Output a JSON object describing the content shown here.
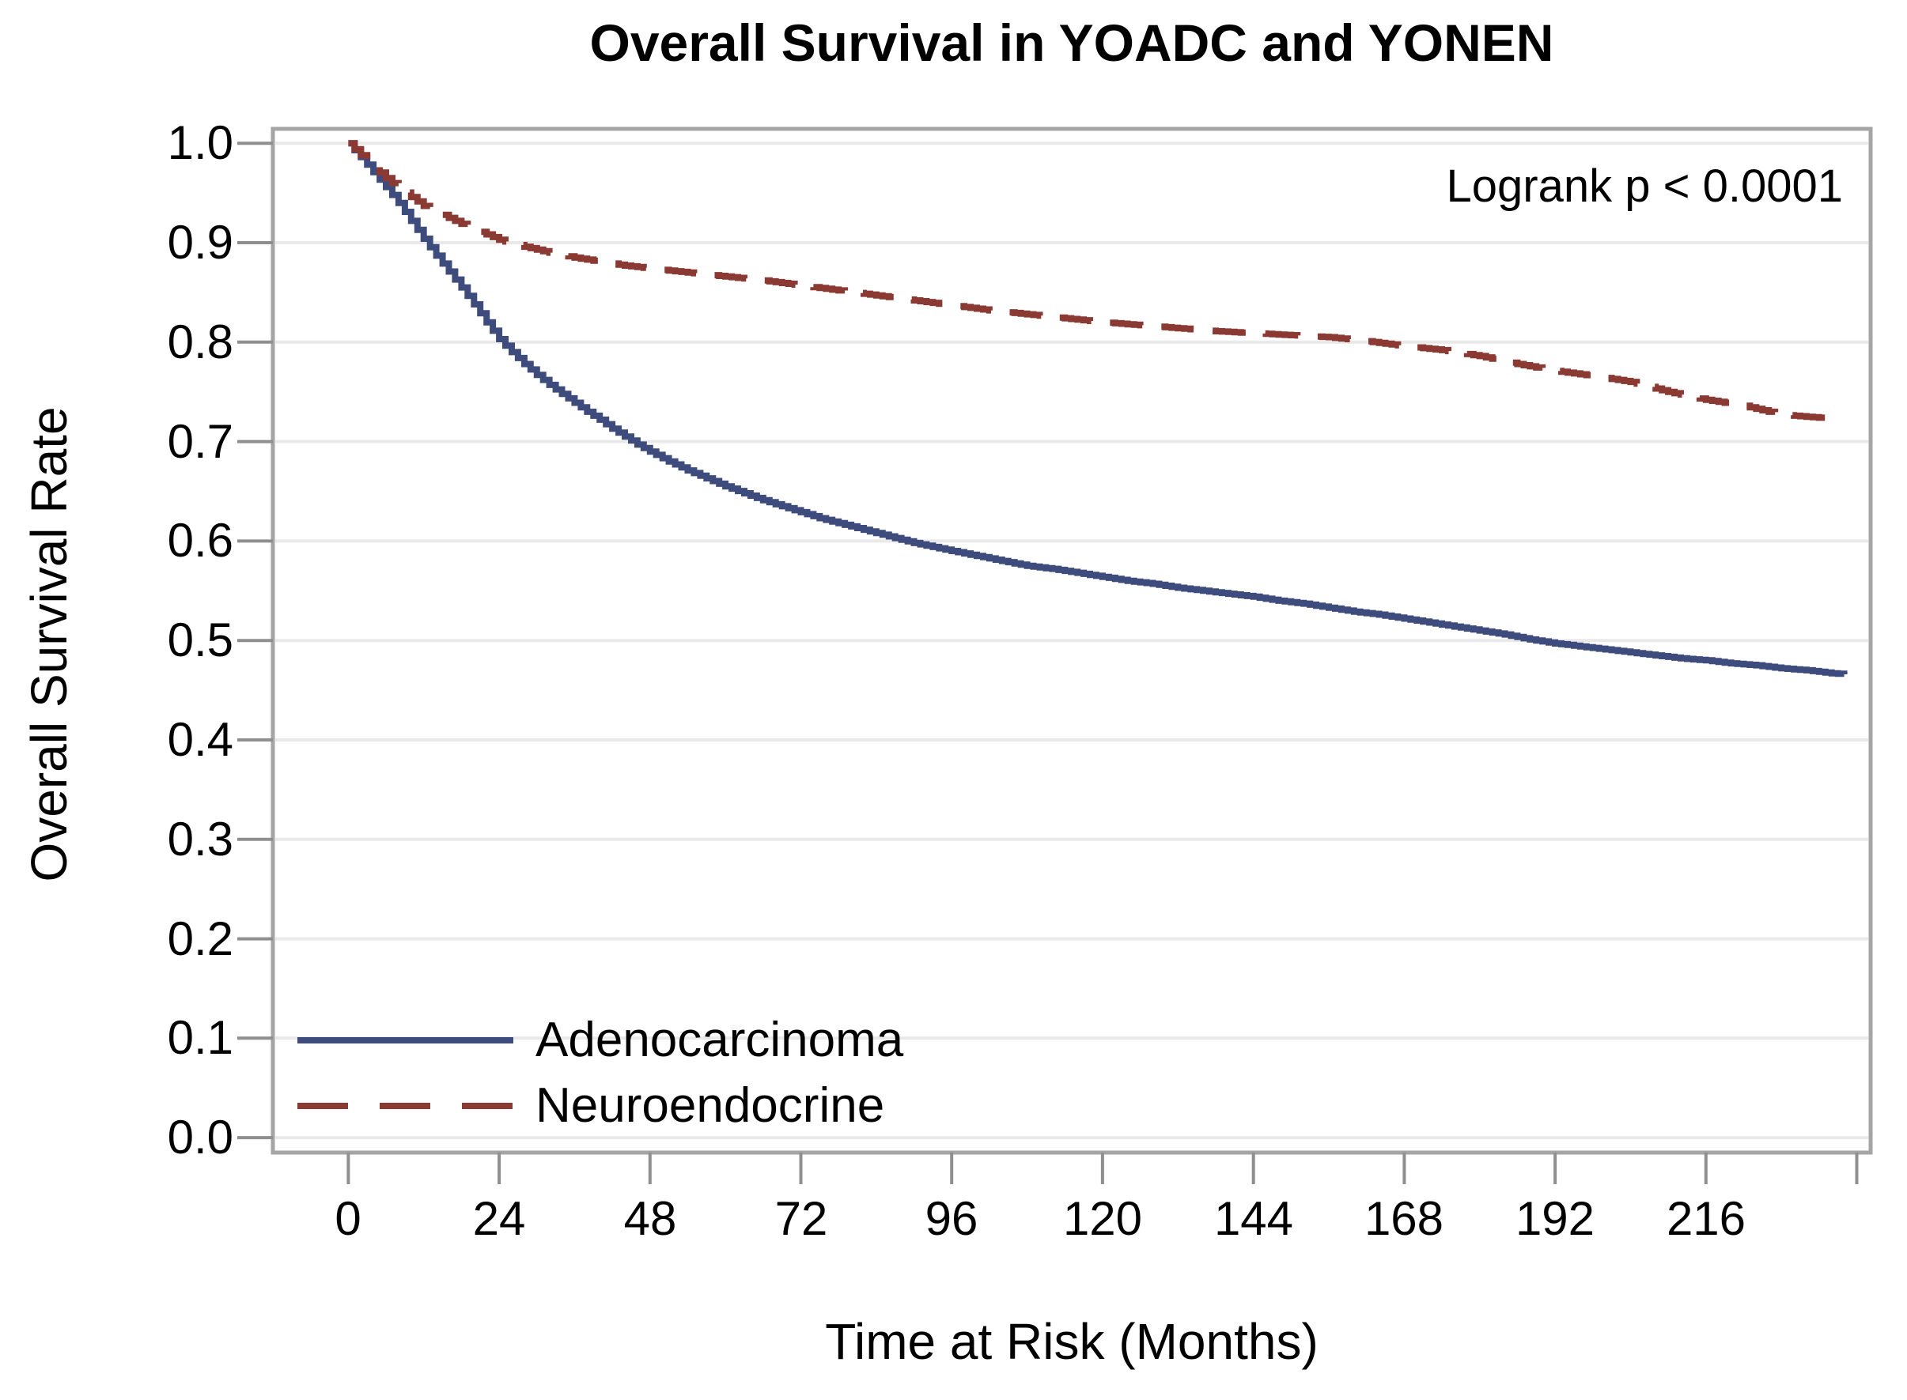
{
  "chart_data": {
    "type": "line",
    "subtype": "kaplan-meier-step",
    "title": "Overall Survival in YOADC and YONEN",
    "xlabel": "Time at Risk (Months)",
    "ylabel": "Overall Survival Rate",
    "annotation": "Logrank p < 0.0001",
    "grid": true,
    "legend_position": "inside-bottom-left",
    "x_axis": {
      "range": [
        -12,
        242.2
      ],
      "tick_values": [
        0,
        24,
        48,
        72,
        96,
        120,
        144,
        168,
        192,
        216
      ],
      "tick_labels": [
        "0",
        "24",
        "48",
        "72",
        "96",
        "120",
        "144",
        "168",
        "192",
        "216"
      ],
      "unlabeled_tick_values": [
        240
      ]
    },
    "y_axis": {
      "range": [
        -0.015,
        1.0145
      ],
      "tick_values": [
        1.0,
        0.9,
        0.8,
        0.7,
        0.6,
        0.5,
        0.4,
        0.3,
        0.2,
        0.1,
        0.0
      ],
      "tick_labels": [
        "1.0",
        "0.9",
        "0.8",
        "0.7",
        "0.6",
        "0.5",
        "0.4",
        "0.3",
        "0.2",
        "0.1",
        "0.0"
      ]
    },
    "series": [
      {
        "name": "Adenocarcinoma",
        "color": "#3e4c7d",
        "line_style": "solid",
        "step": true,
        "points": [
          [
            0,
            1.0
          ],
          [
            2,
            0.986
          ],
          [
            4,
            0.971
          ],
          [
            6,
            0.956
          ],
          [
            8,
            0.94
          ],
          [
            10,
            0.922
          ],
          [
            12,
            0.904
          ],
          [
            14,
            0.887
          ],
          [
            16,
            0.871
          ],
          [
            18,
            0.855
          ],
          [
            20,
            0.838
          ],
          [
            22,
            0.82
          ],
          [
            24,
            0.803
          ],
          [
            26,
            0.79
          ],
          [
            28,
            0.778
          ],
          [
            30,
            0.767
          ],
          [
            32,
            0.757
          ],
          [
            34,
            0.748
          ],
          [
            36,
            0.739
          ],
          [
            38,
            0.73
          ],
          [
            40,
            0.722
          ],
          [
            42,
            0.713
          ],
          [
            44,
            0.705
          ],
          [
            46,
            0.697
          ],
          [
            48,
            0.69
          ],
          [
            51,
            0.68
          ],
          [
            54,
            0.671
          ],
          [
            57,
            0.663
          ],
          [
            60,
            0.655
          ],
          [
            63,
            0.648
          ],
          [
            66,
            0.641
          ],
          [
            69,
            0.635
          ],
          [
            72,
            0.629
          ],
          [
            75,
            0.623
          ],
          [
            78,
            0.618
          ],
          [
            81,
            0.613
          ],
          [
            84,
            0.608
          ],
          [
            87,
            0.603
          ],
          [
            90,
            0.598
          ],
          [
            93,
            0.594
          ],
          [
            96,
            0.59
          ],
          [
            100,
            0.585
          ],
          [
            104,
            0.58
          ],
          [
            108,
            0.575
          ],
          [
            112,
            0.572
          ],
          [
            116,
            0.568
          ],
          [
            120,
            0.564
          ],
          [
            124,
            0.56
          ],
          [
            128,
            0.557
          ],
          [
            132,
            0.553
          ],
          [
            136,
            0.55
          ],
          [
            140,
            0.547
          ],
          [
            144,
            0.544
          ],
          [
            148,
            0.54
          ],
          [
            152,
            0.537
          ],
          [
            156,
            0.533
          ],
          [
            160,
            0.529
          ],
          [
            164,
            0.526
          ],
          [
            168,
            0.522
          ],
          [
            172,
            0.518
          ],
          [
            176,
            0.514
          ],
          [
            180,
            0.51
          ],
          [
            184,
            0.506
          ],
          [
            188,
            0.501
          ],
          [
            192,
            0.497
          ],
          [
            196,
            0.494
          ],
          [
            200,
            0.491
          ],
          [
            204,
            0.488
          ],
          [
            208,
            0.485
          ],
          [
            212,
            0.482
          ],
          [
            216,
            0.48
          ],
          [
            220,
            0.477
          ],
          [
            224,
            0.475
          ],
          [
            228,
            0.472
          ],
          [
            232,
            0.47
          ],
          [
            236,
            0.467
          ],
          [
            238,
            0.466
          ]
        ]
      },
      {
        "name": "Neuroendocrine",
        "color": "#8a3a33",
        "line_style": "dashed",
        "step": true,
        "points": [
          [
            0,
            1.0
          ],
          [
            2,
            0.988
          ],
          [
            4,
            0.976
          ],
          [
            6,
            0.965
          ],
          [
            8,
            0.955
          ],
          [
            10,
            0.946
          ],
          [
            12,
            0.937
          ],
          [
            15,
            0.928
          ],
          [
            18,
            0.919
          ],
          [
            21,
            0.911
          ],
          [
            24,
            0.903
          ],
          [
            28,
            0.896
          ],
          [
            32,
            0.89
          ],
          [
            36,
            0.885
          ],
          [
            40,
            0.881
          ],
          [
            44,
            0.877
          ],
          [
            48,
            0.874
          ],
          [
            54,
            0.87
          ],
          [
            60,
            0.866
          ],
          [
            66,
            0.862
          ],
          [
            72,
            0.857
          ],
          [
            78,
            0.852
          ],
          [
            84,
            0.847
          ],
          [
            90,
            0.842
          ],
          [
            96,
            0.837
          ],
          [
            102,
            0.832
          ],
          [
            108,
            0.828
          ],
          [
            114,
            0.824
          ],
          [
            120,
            0.82
          ],
          [
            126,
            0.817
          ],
          [
            132,
            0.814
          ],
          [
            138,
            0.811
          ],
          [
            144,
            0.809
          ],
          [
            150,
            0.807
          ],
          [
            156,
            0.805
          ],
          [
            162,
            0.801
          ],
          [
            168,
            0.796
          ],
          [
            174,
            0.792
          ],
          [
            180,
            0.786
          ],
          [
            186,
            0.778
          ],
          [
            192,
            0.771
          ],
          [
            198,
            0.766
          ],
          [
            204,
            0.76
          ],
          [
            210,
            0.75
          ],
          [
            216,
            0.742
          ],
          [
            222,
            0.736
          ],
          [
            228,
            0.727
          ],
          [
            234,
            0.724
          ],
          [
            238,
            0.723
          ]
        ]
      }
    ]
  },
  "style_colors": {
    "frame": "#a5a5a5",
    "tick": "#8f8f8f",
    "grid": "#e9e9e9",
    "text": "#000000",
    "background": "#ffffff"
  }
}
